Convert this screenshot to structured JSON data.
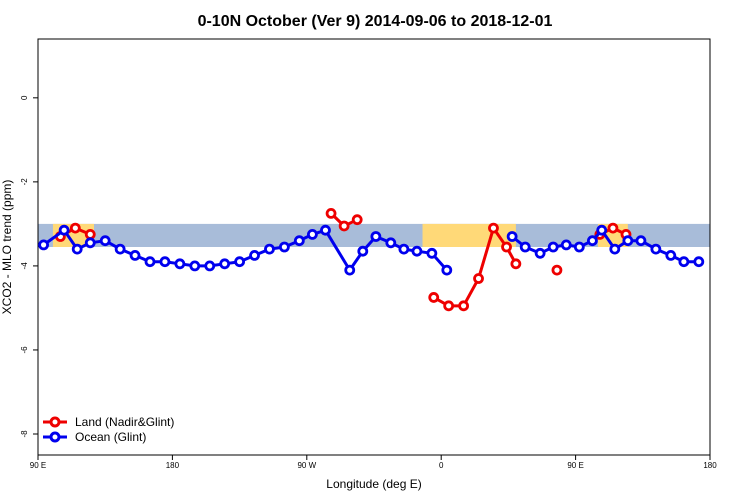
{
  "colors": {
    "land": "#ee0000",
    "ocean": "#0000ee",
    "band_ocean": "#a8bcd9",
    "band_land": "#ffd978"
  },
  "chart_data": {
    "type": "line",
    "title": "0-10N October (Ver 9)   2014-09-06 to 2018-12-01",
    "xlabel": "Longitude (deg E)",
    "ylabel": "XCO2 - MLO trend (ppm)",
    "xlim": [
      0,
      360
    ],
    "ylim": [
      -8.5,
      1.4
    ],
    "x_ticks": [
      {
        "value": 0,
        "label": "90 E"
      },
      {
        "value": 72,
        "label": "180"
      },
      {
        "value": 144,
        "label": "90 W"
      },
      {
        "value": 216,
        "label": "0"
      },
      {
        "value": 288,
        "label": "90 E"
      },
      {
        "value": 360,
        "label": "180"
      }
    ],
    "y_ticks": [
      {
        "value": 0,
        "label": "0"
      },
      {
        "value": -2,
        "label": "-2"
      },
      {
        "value": -4,
        "label": "-4"
      },
      {
        "value": -6,
        "label": "-6"
      },
      {
        "value": -8,
        "label": "-8"
      }
    ],
    "band": {
      "y_range": [
        -3.55,
        -3.0
      ],
      "land_segments": [
        [
          8,
          30
        ],
        [
          206,
          256
        ],
        [
          300,
          316
        ]
      ]
    },
    "legend": {
      "placement": "bottom-left",
      "entries": [
        "Land (Nadir&Glint)",
        "Ocean (Glint)"
      ]
    },
    "series": [
      {
        "name": "Land (Nadir&Glint)",
        "color_key": "land",
        "segments": [
          [
            [
              12,
              -3.3
            ],
            [
              20,
              -3.1
            ],
            [
              28,
              -3.25
            ]
          ],
          [
            [
              157,
              -2.75
            ],
            [
              164,
              -3.05
            ],
            [
              171,
              -2.9
            ]
          ],
          [
            [
              212,
              -4.75
            ],
            [
              220,
              -4.95
            ],
            [
              228,
              -4.95
            ],
            [
              236,
              -4.3
            ],
            [
              244,
              -3.1
            ],
            [
              251,
              -3.55
            ],
            [
              256,
              -3.95
            ]
          ],
          [
            [
              278,
              -4.1
            ]
          ],
          [
            [
              301,
              -3.25
            ],
            [
              308,
              -3.1
            ],
            [
              315,
              -3.25
            ]
          ]
        ]
      },
      {
        "name": "Ocean (Glint)",
        "color_key": "ocean",
        "segments": [
          [
            [
              3,
              -3.5
            ],
            [
              14,
              -3.15
            ],
            [
              21,
              -3.6
            ],
            [
              28,
              -3.45
            ],
            [
              36,
              -3.4
            ],
            [
              44,
              -3.6
            ],
            [
              52,
              -3.75
            ],
            [
              60,
              -3.9
            ],
            [
              68,
              -3.9
            ],
            [
              76,
              -3.95
            ],
            [
              84,
              -4.0
            ],
            [
              92,
              -4.0
            ],
            [
              100,
              -3.95
            ],
            [
              108,
              -3.9
            ],
            [
              116,
              -3.75
            ],
            [
              124,
              -3.6
            ],
            [
              132,
              -3.55
            ],
            [
              140,
              -3.4
            ],
            [
              147,
              -3.25
            ],
            [
              154,
              -3.15
            ],
            [
              167,
              -4.1
            ],
            [
              174,
              -3.65
            ],
            [
              181,
              -3.3
            ],
            [
              189,
              -3.45
            ],
            [
              196,
              -3.6
            ],
            [
              203,
              -3.65
            ],
            [
              211,
              -3.7
            ],
            [
              219,
              -4.1
            ]
          ],
          [
            [
              254,
              -3.3
            ],
            [
              261,
              -3.55
            ],
            [
              269,
              -3.7
            ],
            [
              276,
              -3.55
            ],
            [
              283,
              -3.5
            ],
            [
              290,
              -3.55
            ],
            [
              297,
              -3.4
            ],
            [
              302,
              -3.15
            ],
            [
              309,
              -3.6
            ],
            [
              316,
              -3.4
            ],
            [
              323,
              -3.4
            ],
            [
              331,
              -3.6
            ],
            [
              339,
              -3.75
            ],
            [
              346,
              -3.9
            ],
            [
              354,
              -3.9
            ]
          ]
        ]
      }
    ]
  }
}
